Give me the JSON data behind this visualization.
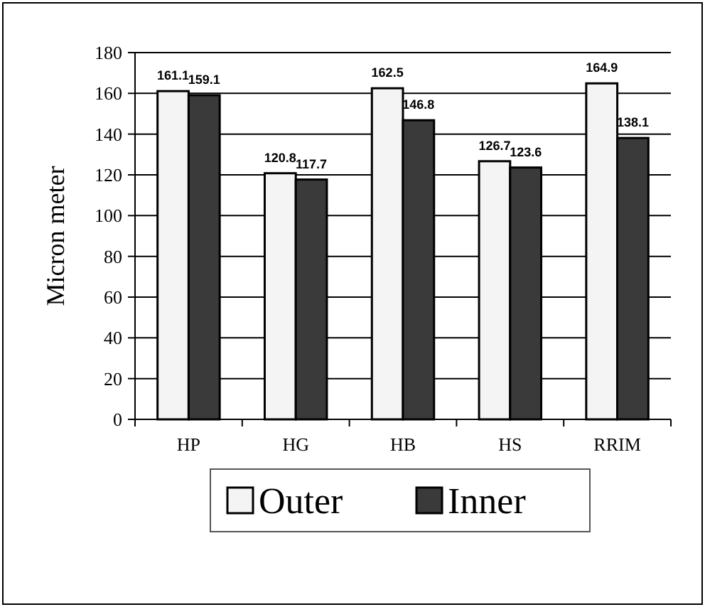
{
  "chart_data": {
    "type": "bar",
    "ylabel": "Micron meter",
    "categories": [
      "HP",
      "HG",
      "HB",
      "HS",
      "RRIM"
    ],
    "series": [
      {
        "name": "Outer",
        "color": "#f4f4f4",
        "values": [
          161.1,
          120.8,
          162.5,
          126.7,
          164.9
        ]
      },
      {
        "name": "Inner",
        "color": "#3a3a3a",
        "values": [
          159.1,
          117.7,
          146.8,
          123.6,
          138.1
        ]
      }
    ],
    "ylim": [
      0,
      180
    ],
    "yticks": [
      0,
      20,
      40,
      60,
      80,
      100,
      120,
      140,
      160,
      180
    ],
    "grid": "y",
    "data_labels": true,
    "legend": "bottom"
  }
}
